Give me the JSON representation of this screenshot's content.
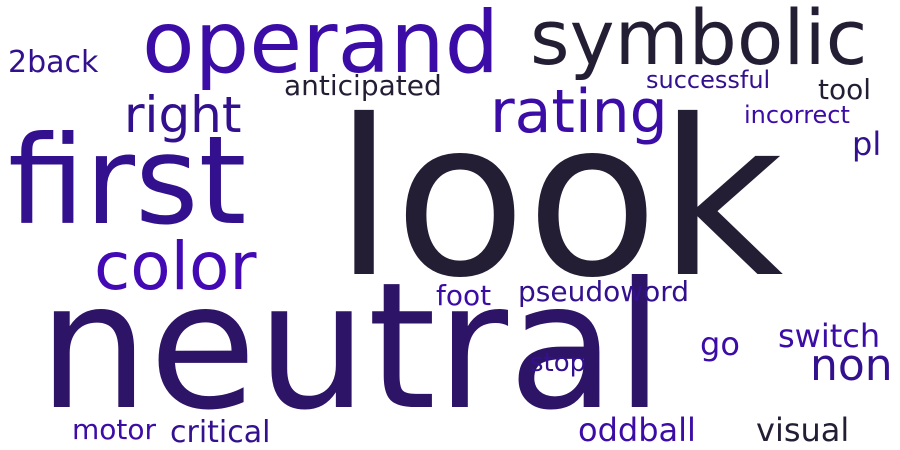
{
  "palette": {
    "dark": "#241e35",
    "deep": "#2e1466",
    "indigo": "#33108e",
    "violet": "#3b0ca6",
    "bright": "#4309b5",
    "background": "#ffffff"
  },
  "words": {
    "look": "look",
    "neutral": "neutral",
    "first": "first",
    "operand": "operand",
    "symbolic": "symbolic",
    "rating": "rating",
    "color": "color",
    "right": "right",
    "non": "non",
    "anticipated": "anticipated",
    "successful": "successful",
    "tool": "tool",
    "incorrect": "incorrect",
    "pl": "pl",
    "2back": "2back",
    "foot": "foot",
    "pseudoword": "pseudoword",
    "switch": "switch",
    "go": "go",
    "stop": "stop",
    "motor": "motor",
    "critical": "critical",
    "oddball": "oddball",
    "visual": "visual"
  }
}
